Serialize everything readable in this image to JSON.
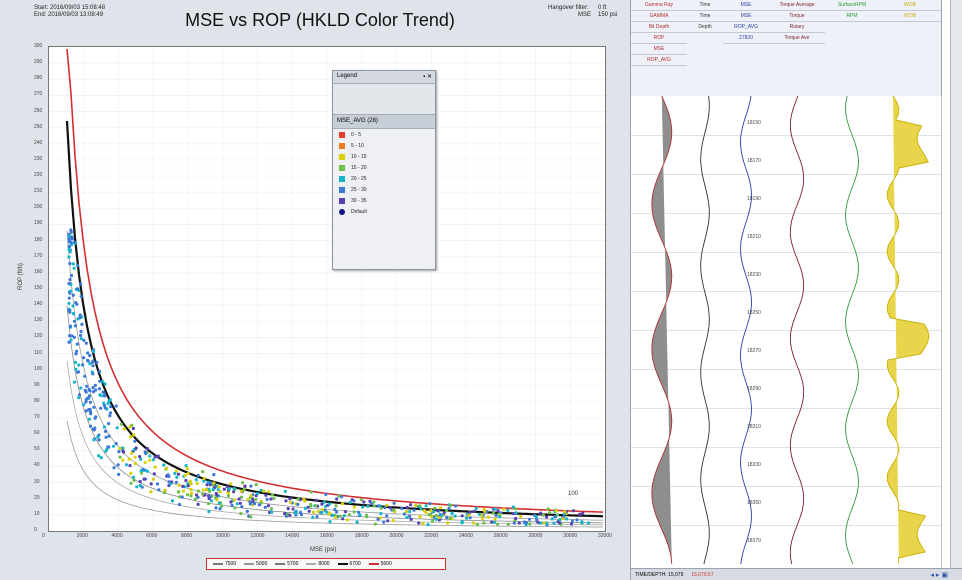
{
  "header": {
    "start": "Start: 2016/09/03 15:08:48",
    "end": "End: 2016/09/03 13:08:49",
    "hangover_label": "Hangover filter:",
    "hangover_value": "0 ft",
    "mse_label": "MSE",
    "mse_value": "150 psi"
  },
  "title": "MSE vs ROP (HKLD Color Trend)",
  "axes": {
    "ylabel": "ROP (ft/h)",
    "xlabel": "MSE (psi)",
    "yticks": [
      "300",
      "290",
      "280",
      "270",
      "260",
      "250",
      "240",
      "230",
      "220",
      "210",
      "200",
      "190",
      "180",
      "170",
      "160",
      "150",
      "140",
      "130",
      "120",
      "110",
      "100",
      "90",
      "80",
      "70",
      "60",
      "50",
      "40",
      "30",
      "20",
      "10",
      "0"
    ],
    "xticks": [
      "0",
      "2000",
      "4000",
      "6000",
      "8000",
      "10000",
      "12000",
      "14000",
      "16000",
      "18000",
      "20000",
      "22000",
      "24000",
      "26000",
      "28000",
      "30000",
      "32000"
    ]
  },
  "legend": {
    "title": "Legend",
    "header": "MSE_AVG (28)",
    "items": [
      {
        "label": "0 - 5",
        "color": "#e53b2b"
      },
      {
        "label": "5 - 10",
        "color": "#f07e1d"
      },
      {
        "label": "10 - 15",
        "color": "#d8d000"
      },
      {
        "label": "15 - 20",
        "color": "#6cc04a"
      },
      {
        "label": "20 - 25",
        "color": "#16b6c9"
      },
      {
        "label": "25 - 30",
        "color": "#3c78d8"
      },
      {
        "label": "30 - 35",
        "color": "#5a3fb5"
      },
      {
        "label": "Default",
        "color": "#14148c"
      }
    ]
  },
  "bottom_legend": [
    {
      "label": "7500",
      "color": "#777"
    },
    {
      "label": "5000",
      "color": "#999"
    },
    {
      "label": "5700",
      "color": "#777"
    },
    {
      "label": "8000",
      "color": "#aaa"
    },
    {
      "label": "6700",
      "color": "#111"
    },
    {
      "label": "5600",
      "color": "#d23030"
    }
  ],
  "tracks": [
    {
      "name": "Gamma Ray",
      "values": [
        "GAMMA",
        "Bit Depth",
        "ROP",
        "MSE",
        "ROP_AVG"
      ]
    },
    {
      "name": "Time",
      "values": [
        "Time",
        "Depth"
      ]
    },
    {
      "name": "MSE",
      "values": [
        "MSE",
        "ROP_AVG",
        "27820"
      ]
    },
    {
      "name": "Torque Average",
      "values": [
        "Torque",
        "Rotary",
        "Torque Ave"
      ]
    },
    {
      "name": "SurfaceRPM",
      "values": [
        "RPM"
      ]
    },
    {
      "name": "WOB",
      "values": [
        "WOB"
      ]
    }
  ],
  "depths": [
    "18150",
    "18170",
    "18190",
    "18210",
    "18230",
    "18250",
    "18270",
    "18290",
    "18310",
    "18330",
    "18350",
    "18370"
  ],
  "status": {
    "left": "TIME/DEPTH: 15,079",
    "right": "15,079.57"
  }
}
